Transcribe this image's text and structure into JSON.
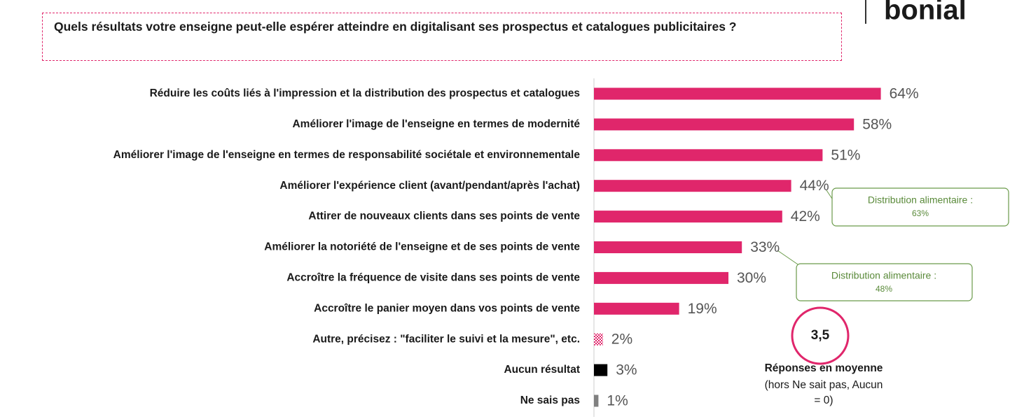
{
  "logo": "bonial",
  "chart_data": {
    "type": "bar",
    "orientation": "horizontal",
    "title": "Quels résultats votre enseigne peut-elle espérer atteindre en digitalisant ses prospectus et catalogues publicitaires ?",
    "categories": [
      "Réduire les coûts liés à l'impression et la distribution des prospectus et catalogues",
      "Améliorer l'image de l'enseigne en termes de modernité",
      "Améliorer l'image de l'enseigne en termes de responsabilité sociétale et environnementale",
      "Améliorer l'expérience client (avant/pendant/après l'achat)",
      "Attirer de nouveaux clients dans ses points de vente",
      "Améliorer la notoriété de l'enseigne et de ses points de vente",
      "Accroître la fréquence de visite dans ses points de vente",
      "Accroître le panier moyen dans vos points de vente",
      "Autre, précisez : \"faciliter le suivi et la mesure\", etc.",
      "Aucun résultat",
      "Ne sais pas"
    ],
    "values": [
      64,
      58,
      51,
      44,
      42,
      33,
      30,
      19,
      2,
      3,
      1
    ],
    "value_labels": [
      "64%",
      "58%",
      "51%",
      "44%",
      "42%",
      "33%",
      "30%",
      "19%",
      "2%",
      "3%",
      "1%"
    ],
    "colors": [
      "#e0266b",
      "#e0266b",
      "#e0266b",
      "#e0266b",
      "#e0266b",
      "#e0266b",
      "#e0266b",
      "#e0266b",
      "#e0266b",
      "#000000",
      "#808080"
    ],
    "bar_styles": [
      "solid",
      "solid",
      "solid",
      "solid",
      "solid",
      "solid",
      "solid",
      "solid",
      "checkered",
      "solid",
      "solid"
    ],
    "annotations": [
      {
        "text": "Distribution alimentaire :",
        "value": "63%"
      },
      {
        "text": "Distribution alimentaire :",
        "value": "48%"
      }
    ],
    "average": {
      "value": "3,5",
      "label": "Réponses en moyenne",
      "note": [
        "(hors Ne sait pas, Aucun",
        "= 0)"
      ]
    }
  }
}
